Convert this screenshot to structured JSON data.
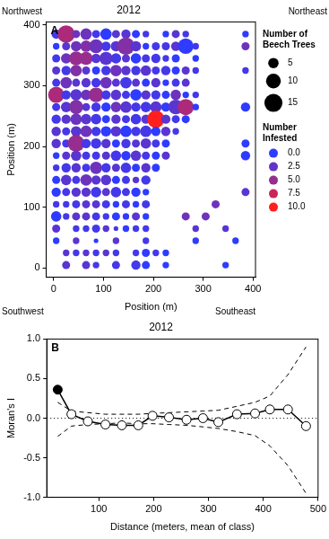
{
  "chart_data": [
    {
      "type": "bubble",
      "title": "2012",
      "panel_label": "A",
      "corner_labels": {
        "top_left": "Northwest",
        "top_right": "Northeast",
        "bottom_left": "Southwest",
        "bottom_right": "Southeast"
      },
      "x_label": "Position (m)",
      "y_label": "Position (m)",
      "xlim": [
        -15,
        405
      ],
      "ylim": [
        -15,
        405
      ],
      "xticks": [
        0,
        100,
        200,
        300,
        400
      ],
      "yticks": [
        0,
        100,
        200,
        300,
        400
      ],
      "grid": false,
      "size_legend": {
        "title": "Number of Beech Trees",
        "values": [
          5,
          10,
          15
        ]
      },
      "color_bar": {
        "title": "Number Infested",
        "range": [
          0,
          10
        ],
        "ticks": [
          {
            "value": 0,
            "label": "0.0"
          },
          2.5,
          {
            "value": 5,
            "label": "5.0"
          },
          7.5,
          {
            "value": 10,
            "label": "10.0"
          }
        ],
        "colors": [
          "#2f3bff",
          "#ff1f1f"
        ]
      },
      "rows": [
        {
          "y": 385,
          "x": [
            5,
            25,
            45,
            65,
            85,
            105,
            125,
            145,
            165,
            185,
            225,
            245,
            265,
            385
          ],
          "trees": [
            4,
            14,
            3,
            6,
            3,
            6,
            3,
            4,
            3,
            2,
            2,
            3,
            2,
            2
          ],
          "infested": [
            1,
            6,
            3,
            3,
            1,
            0,
            2,
            2,
            0,
            1,
            0,
            2,
            1,
            0
          ]
        },
        {
          "y": 365,
          "x": [
            5,
            25,
            45,
            65,
            85,
            105,
            125,
            145,
            165,
            185,
            205,
            225,
            245,
            265,
            285,
            385
          ],
          "trees": [
            2,
            3,
            5,
            6,
            9,
            4,
            5,
            14,
            5,
            2,
            3,
            3,
            4,
            11,
            2,
            3
          ],
          "infested": [
            0,
            2,
            3,
            4,
            3,
            1,
            2,
            4,
            2,
            0,
            1,
            1,
            2,
            0,
            1,
            3
          ]
        },
        {
          "y": 345,
          "x": [
            5,
            25,
            45,
            65,
            85,
            105,
            125,
            145,
            165,
            185,
            205,
            225,
            245,
            285
          ],
          "trees": [
            3,
            5,
            9,
            8,
            4,
            8,
            5,
            3,
            5,
            3,
            4,
            2,
            3,
            2
          ],
          "infested": [
            1,
            3,
            5,
            5,
            2,
            2,
            1,
            2,
            0,
            1,
            1,
            1,
            0,
            0
          ]
        },
        {
          "y": 325,
          "x": [
            5,
            25,
            45,
            65,
            85,
            105,
            125,
            145,
            165,
            185,
            205,
            225,
            245,
            265,
            285,
            385
          ],
          "trees": [
            3,
            4,
            6,
            3,
            3,
            4,
            6,
            4,
            4,
            5,
            3,
            4,
            3,
            3,
            2,
            2
          ],
          "infested": [
            2,
            1,
            4,
            2,
            0,
            1,
            3,
            2,
            1,
            2,
            1,
            1,
            0,
            2,
            1,
            1
          ]
        },
        {
          "y": 305,
          "x": [
            5,
            25,
            45,
            65,
            85,
            105,
            125,
            145,
            165,
            185,
            205,
            225,
            245,
            265
          ],
          "trees": [
            3,
            6,
            3,
            4,
            4,
            6,
            3,
            6,
            3,
            3,
            4,
            2,
            3,
            3
          ],
          "infested": [
            1,
            3,
            2,
            2,
            1,
            3,
            2,
            1,
            2,
            0,
            2,
            0,
            1,
            2
          ]
        },
        {
          "y": 285,
          "x": [
            5,
            25,
            45,
            65,
            85,
            105,
            125,
            145,
            165,
            185,
            205,
            225,
            245,
            265,
            285
          ],
          "trees": [
            12,
            4,
            6,
            5,
            10,
            4,
            5,
            3,
            6,
            4,
            4,
            3,
            5,
            2,
            2
          ],
          "infested": [
            6,
            1,
            2,
            3,
            5,
            1,
            2,
            1,
            0,
            2,
            1,
            0,
            3,
            0,
            1
          ]
        },
        {
          "y": 265,
          "x": [
            5,
            25,
            45,
            65,
            85,
            105,
            125,
            145,
            165,
            185,
            205,
            225,
            245,
            265,
            285,
            385
          ],
          "trees": [
            3,
            5,
            9,
            3,
            4,
            4,
            5,
            6,
            4,
            5,
            6,
            4,
            10,
            12,
            2,
            4
          ],
          "infested": [
            1,
            2,
            4,
            2,
            1,
            0,
            3,
            2,
            1,
            1,
            2,
            0,
            2,
            6,
            0,
            0
          ]
        },
        {
          "y": 245,
          "x": [
            5,
            25,
            45,
            65,
            85,
            105,
            125,
            145,
            165,
            185,
            205,
            225,
            245,
            265
          ],
          "trees": [
            4,
            4,
            6,
            5,
            5,
            3,
            4,
            3,
            5,
            4,
            14,
            4,
            3,
            3
          ],
          "infested": [
            1,
            2,
            3,
            2,
            1,
            0,
            2,
            1,
            1,
            2,
            10,
            2,
            1,
            0
          ]
        },
        {
          "y": 225,
          "x": [
            5,
            25,
            45,
            65,
            85,
            105,
            125,
            145,
            165,
            185,
            205,
            225,
            245
          ],
          "trees": [
            4,
            3,
            5,
            6,
            4,
            5,
            5,
            6,
            4,
            6,
            4,
            4,
            2
          ],
          "infested": [
            2,
            1,
            2,
            3,
            1,
            0,
            2,
            0,
            1,
            1,
            0,
            2,
            1
          ]
        },
        {
          "y": 205,
          "x": [
            5,
            25,
            45,
            65,
            85,
            105,
            125,
            145,
            165,
            185,
            205,
            225,
            385
          ],
          "trees": [
            4,
            3,
            13,
            4,
            5,
            4,
            3,
            4,
            3,
            5,
            3,
            3,
            3
          ],
          "infested": [
            2,
            1,
            5,
            1,
            1,
            2,
            0,
            1,
            2,
            2,
            1,
            0,
            0
          ]
        },
        {
          "y": 185,
          "x": [
            5,
            25,
            45,
            65,
            85,
            105,
            125,
            145,
            165,
            185,
            205,
            225,
            385
          ],
          "trees": [
            2,
            3,
            5,
            3,
            3,
            3,
            5,
            4,
            5,
            3,
            3,
            3,
            4
          ],
          "infested": [
            0,
            2,
            2,
            1,
            1,
            2,
            1,
            0,
            2,
            1,
            0,
            2,
            0
          ]
        },
        {
          "y": 165,
          "x": [
            5,
            25,
            45,
            65,
            85,
            105,
            125,
            145,
            165,
            185,
            205
          ],
          "trees": [
            2,
            4,
            4,
            3,
            7,
            4,
            3,
            5,
            3,
            4,
            3
          ],
          "infested": [
            1,
            1,
            2,
            1,
            3,
            1,
            2,
            1,
            0,
            2,
            0
          ]
        },
        {
          "y": 145,
          "x": [
            5,
            25,
            45,
            65,
            85,
            105,
            125,
            145,
            165,
            185
          ],
          "trees": [
            3,
            5,
            3,
            6,
            4,
            5,
            3,
            3,
            2,
            4
          ],
          "infested": [
            0,
            2,
            1,
            3,
            2,
            2,
            0,
            1,
            2,
            1
          ]
        },
        {
          "y": 125,
          "x": [
            5,
            25,
            45,
            65,
            85,
            105,
            125,
            145,
            165,
            185,
            385
          ],
          "trees": [
            4,
            3,
            4,
            4,
            5,
            3,
            5,
            3,
            4,
            2,
            3
          ],
          "infested": [
            0,
            1,
            2,
            2,
            1,
            2,
            1,
            1,
            0,
            0,
            2
          ]
        },
        {
          "y": 105,
          "x": [
            5,
            25,
            45,
            65,
            85,
            105,
            125,
            145,
            165,
            185,
            325
          ],
          "trees": [
            2,
            2,
            3,
            3,
            3,
            3,
            2,
            3,
            2,
            3,
            3
          ],
          "infested": [
            1,
            1,
            1,
            2,
            2,
            1,
            0,
            1,
            0,
            1,
            3
          ]
        },
        {
          "y": 85,
          "x": [
            5,
            25,
            45,
            65,
            85,
            105,
            125,
            145,
            165,
            185,
            265,
            305
          ],
          "trees": [
            5,
            2,
            3,
            3,
            3,
            2,
            3,
            2,
            3,
            2,
            3,
            3
          ],
          "infested": [
            0,
            1,
            2,
            2,
            1,
            1,
            0,
            0,
            2,
            0,
            3,
            3
          ]
        },
        {
          "y": 65,
          "x": [
            5,
            45,
            65,
            85,
            105,
            125,
            145,
            165,
            185,
            285,
            345
          ],
          "trees": [
            3,
            2,
            2,
            3,
            2,
            1,
            2,
            2,
            2,
            2,
            2
          ],
          "infested": [
            2,
            1,
            1,
            1,
            2,
            1,
            0,
            1,
            1,
            2,
            2
          ]
        },
        {
          "y": 45,
          "x": [
            5,
            45,
            85,
            125,
            185,
            285,
            365
          ],
          "trees": [
            2,
            2,
            1,
            2,
            2,
            2,
            2
          ],
          "infested": [
            0,
            2,
            0,
            2,
            1,
            0,
            0
          ]
        },
        {
          "y": 25,
          "x": [
            25,
            45,
            65,
            85,
            105,
            125,
            165,
            185,
            205,
            225
          ],
          "trees": [
            2,
            2,
            2,
            2,
            2,
            2,
            2,
            3,
            2,
            2
          ],
          "infested": [
            2,
            1,
            2,
            1,
            2,
            1,
            1,
            0,
            1,
            0
          ]
        },
        {
          "y": 5,
          "x": [
            25,
            65,
            85,
            125,
            165,
            185,
            225,
            345
          ],
          "trees": [
            3,
            3,
            2,
            3,
            4,
            3,
            2,
            2
          ],
          "infested": [
            2,
            2,
            1,
            1,
            1,
            0,
            0,
            0
          ]
        }
      ]
    },
    {
      "type": "line",
      "title": "2012",
      "panel_label": "B",
      "x_label": "Distance (meters, mean of class)",
      "y_label": "Moran's I",
      "xlim": [
        5,
        500
      ],
      "ylim": [
        -1,
        1
      ],
      "xticks": [
        100,
        200,
        300,
        400,
        500
      ],
      "yticks": [
        {
          "value": -1,
          "label": "-1.0"
        },
        -0.5,
        {
          "value": 0,
          "label": "0.0"
        },
        0.5,
        {
          "value": 1,
          "label": "1.0"
        }
      ],
      "grid": false,
      "reference_line": {
        "y": 0,
        "line_style": "dotted"
      },
      "x": [
        25,
        50,
        80,
        112,
        142,
        172,
        198,
        228,
        260,
        290,
        318,
        352,
        385,
        412,
        445,
        478
      ],
      "series": [
        {
          "values": [
            0.36,
            0.05,
            -0.04,
            -0.08,
            -0.09,
            -0.09,
            0.03,
            0.01,
            -0.02,
            0.0,
            -0.05,
            0.05,
            0.06,
            0.11,
            0.11,
            -0.1
          ],
          "significant": [
            true,
            false,
            false,
            false,
            false,
            false,
            false,
            false,
            false,
            false,
            false,
            false,
            false,
            false,
            false,
            false
          ],
          "color": "#000000",
          "marker": "circle",
          "line_style": "solid"
        },
        {
          "values": [
            0.2,
            0.09,
            0.07,
            0.05,
            0.05,
            0.05,
            0.06,
            0.07,
            0.08,
            0.09,
            0.1,
            0.15,
            0.2,
            0.28,
            0.55,
            0.9
          ],
          "color": "#000000",
          "marker": "none",
          "line_style": "dashed"
        },
        {
          "values": [
            -0.23,
            -0.1,
            -0.08,
            -0.07,
            -0.06,
            -0.07,
            -0.07,
            -0.08,
            -0.09,
            -0.11,
            -0.13,
            -0.17,
            -0.22,
            -0.35,
            -0.6,
            -0.95
          ],
          "color": "#000000",
          "marker": "none",
          "line_style": "dashed"
        }
      ]
    }
  ]
}
